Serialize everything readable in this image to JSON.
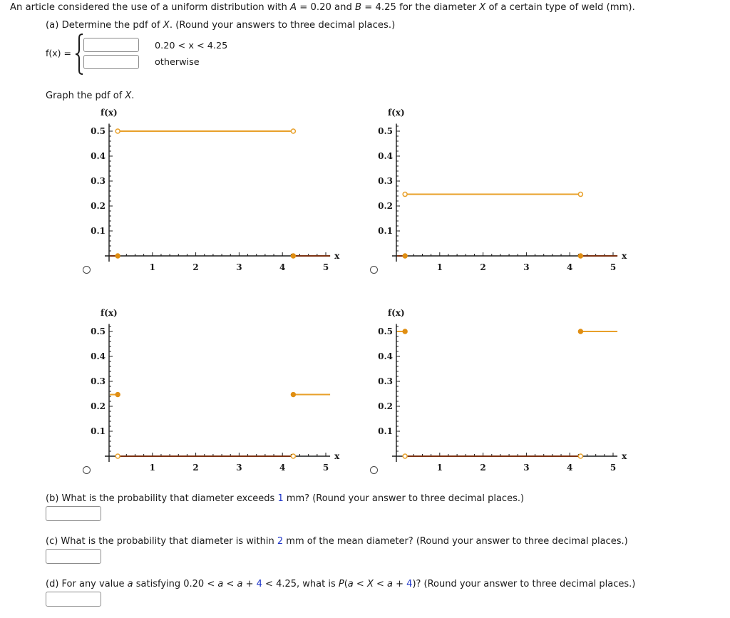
{
  "intro": {
    "pre": "An article considered the use of a uniform distribution with ",
    "A_var": "A",
    "eq1": " = 0.20 and ",
    "B_var": "B",
    "eq2": " = 4.25 for the diameter ",
    "X_var": "X",
    "post": " of a certain type of weld (mm)."
  },
  "part_a": {
    "prompt_pre": "(a) Determine the pdf of ",
    "prompt_var": "X",
    "prompt_post": ". (Round your answers to three decimal places.)",
    "fx_label": "f(x) =",
    "rows": [
      {
        "value": "",
        "placeholder": "",
        "condition": "0.20 < x < 4.25"
      },
      {
        "value": "",
        "placeholder": "",
        "condition": "otherwise"
      }
    ],
    "graph_prompt_pre": "Graph the pdf of ",
    "graph_prompt_var": "X",
    "graph_prompt_post": "."
  },
  "graph_options": [
    {
      "id": "option-1",
      "selected": false
    },
    {
      "id": "option-2",
      "selected": false
    },
    {
      "id": "option-3",
      "selected": false
    },
    {
      "id": "option-4",
      "selected": false
    }
  ],
  "axes": {
    "ylabel": "f(x)",
    "xlabel": "x",
    "yticks": [
      "0.1",
      "0.2",
      "0.3",
      "0.4",
      "0.5"
    ],
    "xticks": [
      "1",
      "2",
      "3",
      "4",
      "5"
    ]
  },
  "colors": {
    "curve": "#e8a02a",
    "curve_dot": "#e08e12",
    "zero_line": "#7a3010",
    "axis": "#1a1a1a",
    "link_number": "#1d34c8"
  },
  "chart_data": [
    {
      "type": "line",
      "title": "Option 1",
      "xlabel": "x",
      "ylabel": "f(x)",
      "xlim": [
        0,
        5
      ],
      "ylim": [
        0,
        0.5
      ],
      "xticks": [
        1,
        2,
        3,
        4,
        5
      ],
      "yticks": [
        0.1,
        0.2,
        0.3,
        0.4,
        0.5
      ],
      "series": [
        {
          "name": "inside",
          "x": [
            0.2,
            4.25
          ],
          "y": [
            0.5,
            0.5
          ],
          "endpoints": "open"
        },
        {
          "name": "outside",
          "x": [
            0,
            0.2,
            4.25,
            5
          ],
          "y": [
            0,
            0,
            0,
            0
          ],
          "endpoints": "closed"
        }
      ]
    },
    {
      "type": "line",
      "title": "Option 2",
      "xlabel": "x",
      "ylabel": "f(x)",
      "xlim": [
        0,
        5
      ],
      "ylim": [
        0,
        0.5
      ],
      "xticks": [
        1,
        2,
        3,
        4,
        5
      ],
      "yticks": [
        0.1,
        0.2,
        0.3,
        0.4,
        0.5
      ],
      "series": [
        {
          "name": "inside",
          "x": [
            0.2,
            4.25
          ],
          "y": [
            0.247,
            0.247
          ],
          "endpoints": "open"
        },
        {
          "name": "outside",
          "x": [
            0,
            0.2,
            4.25,
            5
          ],
          "y": [
            0,
            0,
            0,
            0
          ],
          "endpoints": "closed"
        }
      ]
    },
    {
      "type": "line",
      "title": "Option 3",
      "xlabel": "x",
      "ylabel": "f(x)",
      "xlim": [
        0,
        5
      ],
      "ylim": [
        0,
        0.5
      ],
      "xticks": [
        1,
        2,
        3,
        4,
        5
      ],
      "yticks": [
        0.1,
        0.2,
        0.3,
        0.4,
        0.5
      ],
      "series": [
        {
          "name": "inside",
          "x": [
            0.2,
            4.25
          ],
          "y": [
            0,
            0
          ],
          "endpoints": "open"
        },
        {
          "name": "outside",
          "x": [
            0,
            0.2,
            4.25,
            5
          ],
          "y": [
            0.247,
            0.247,
            0.247,
            0.247
          ],
          "endpoints": "closed"
        }
      ]
    },
    {
      "type": "line",
      "title": "Option 4",
      "xlabel": "x",
      "ylabel": "f(x)",
      "xlim": [
        0,
        5
      ],
      "ylim": [
        0,
        0.5
      ],
      "xticks": [
        1,
        2,
        3,
        4,
        5
      ],
      "yticks": [
        0.1,
        0.2,
        0.3,
        0.4,
        0.5
      ],
      "series": [
        {
          "name": "inside",
          "x": [
            0.2,
            4.25
          ],
          "y": [
            0,
            0
          ],
          "endpoints": "open"
        },
        {
          "name": "outside",
          "x": [
            0,
            0.2,
            4.25,
            5
          ],
          "y": [
            0.5,
            0.5,
            0.5,
            0.5
          ],
          "endpoints": "closed"
        }
      ]
    }
  ],
  "part_b": {
    "pre": "(b) What is the probability that diameter exceeds ",
    "num": "1",
    "post": " mm? (Round your answer to three decimal places.)",
    "value": ""
  },
  "part_c": {
    "pre": "(c) What is the probability that diameter is within ",
    "num": "2",
    "post": " mm of the mean diameter? (Round your answer to three decimal places.)",
    "value": ""
  },
  "part_d": {
    "pre": "(d) For any value ",
    "a1": "a",
    "mid1": " satisfying 0.20 < ",
    "a2": "a",
    "mid2": " < ",
    "a3": "a",
    "mid3": " + ",
    "num1": "4",
    "mid4": " < 4.25, what is ",
    "P": "P",
    "mid5": "(",
    "a4": "a",
    "mid6": " < ",
    "X": "X",
    "mid7": " < ",
    "a5": "a",
    "mid8": " + ",
    "num2": "4",
    "post": ")? (Round your answer to three decimal places.)",
    "value": ""
  }
}
